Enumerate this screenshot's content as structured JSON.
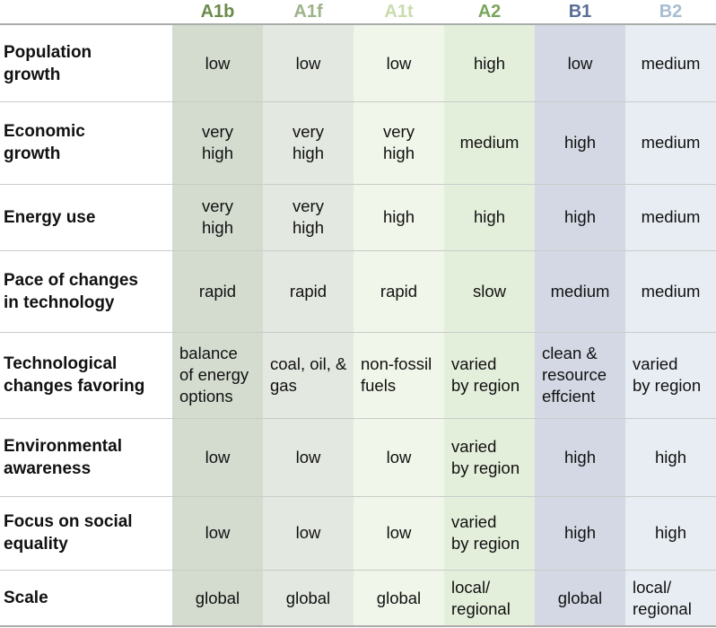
{
  "headers": [
    {
      "label": "A1b",
      "color": "#6a8a4a"
    },
    {
      "label": "A1f",
      "color": "#9db38a"
    },
    {
      "label": "A1t",
      "color": "#c9dcae"
    },
    {
      "label": "A2",
      "color": "#78a65a"
    },
    {
      "label": "B1",
      "color": "#5a6f95"
    },
    {
      "label": "B2",
      "color": "#a8bdd2"
    }
  ],
  "column_backgrounds": [
    "#d4dccf",
    "#e3e8e1",
    "#f0f6e9",
    "#e4efdb",
    "#d3d8e4",
    "#e7edf3"
  ],
  "rows": [
    {
      "label": "Population\ngrowth",
      "cells": [
        "low",
        "low",
        "low",
        "high",
        "low",
        "medium"
      ]
    },
    {
      "label": "Economic\ngrowth",
      "cells": [
        "very\nhigh",
        "very\nhigh",
        "very\nhigh",
        "medium",
        "high",
        "medium"
      ]
    },
    {
      "label": "Energy use",
      "cells": [
        "very\nhigh",
        "very\nhigh",
        "high",
        "high",
        "high",
        "medium"
      ]
    },
    {
      "label": "Pace of changes\nin technology",
      "cells": [
        "rapid",
        "rapid",
        "rapid",
        "slow",
        "medium",
        "medium"
      ]
    },
    {
      "label": "Technological\nchanges favoring",
      "cells": [
        "balance\nof energy\noptions",
        "coal, oil, &\ngas",
        "non-fossil\nfuels",
        "varied\nby region",
        "clean &\nresource\neffcient",
        "varied\nby region"
      ]
    },
    {
      "label": "Environmental\nawareness",
      "cells": [
        "low",
        "low",
        "low",
        "varied\nby region",
        "high",
        "high"
      ]
    },
    {
      "label": "Focus on social\nequality",
      "cells": [
        "low",
        "low",
        "low",
        "varied\nby region",
        "high",
        "high"
      ]
    },
    {
      "label": "Scale",
      "cells": [
        "global",
        "global",
        "global",
        "local/\nregional",
        "global",
        "local/\nregional"
      ]
    }
  ]
}
